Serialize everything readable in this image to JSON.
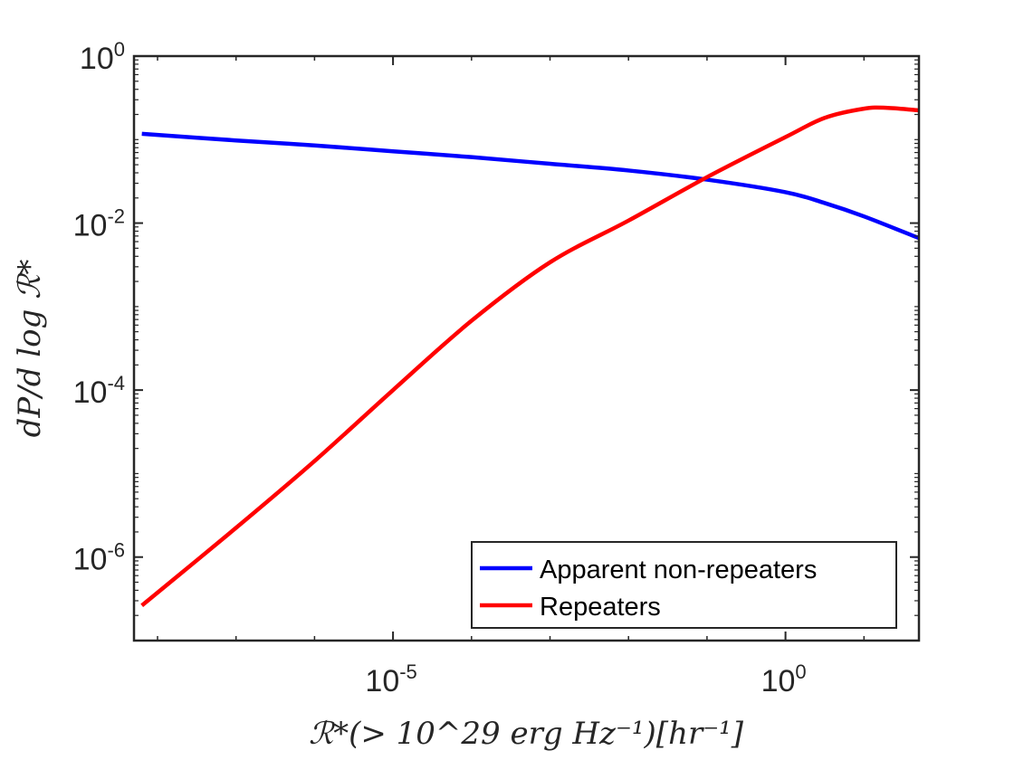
{
  "chart_data": {
    "type": "line",
    "title": "",
    "xlabel": "ℛ*(> 10^29 erg Hz⁻¹)[hr⁻¹]",
    "ylabel": "dP/d log ℛ*",
    "xscale": "log",
    "yscale": "log",
    "xlim_log10": [
      -8.3,
      1.7
    ],
    "ylim_log10": [
      -7,
      0
    ],
    "x_ticks": [
      {
        "base": "10",
        "exp": "-5",
        "log10": -5
      },
      {
        "base": "10",
        "exp": "0",
        "log10": 0
      }
    ],
    "y_ticks": [
      {
        "base": "10",
        "exp": "0",
        "log10": 0
      },
      {
        "base": "10",
        "exp": "-2",
        "log10": -2
      },
      {
        "base": "10",
        "exp": "-4",
        "log10": -4
      },
      {
        "base": "10",
        "exp": "-6",
        "log10": -6
      }
    ],
    "legend_position": "bottom-right",
    "series": [
      {
        "name": "Apparent non-repeaters",
        "color": "#0000ff",
        "x_log10": [
          -8.2,
          -7,
          -6,
          -5,
          -4,
          -3,
          -2,
          -1,
          0,
          0.5,
          1,
          1.7
        ],
        "y_log10": [
          -0.93,
          -1.01,
          -1.07,
          -1.14,
          -1.21,
          -1.29,
          -1.37,
          -1.48,
          -1.63,
          -1.76,
          -1.92,
          -2.18
        ]
      },
      {
        "name": "Repeaters",
        "color": "#ff0000",
        "x_log10": [
          -8.2,
          -7,
          -6,
          -5,
          -4,
          -3,
          -2,
          -1,
          0,
          0.5,
          1,
          1.3,
          1.7
        ],
        "y_log10": [
          -6.58,
          -5.65,
          -4.85,
          -4.0,
          -3.17,
          -2.47,
          -1.97,
          -1.45,
          -0.97,
          -0.74,
          -0.63,
          -0.62,
          -0.65
        ]
      }
    ]
  }
}
